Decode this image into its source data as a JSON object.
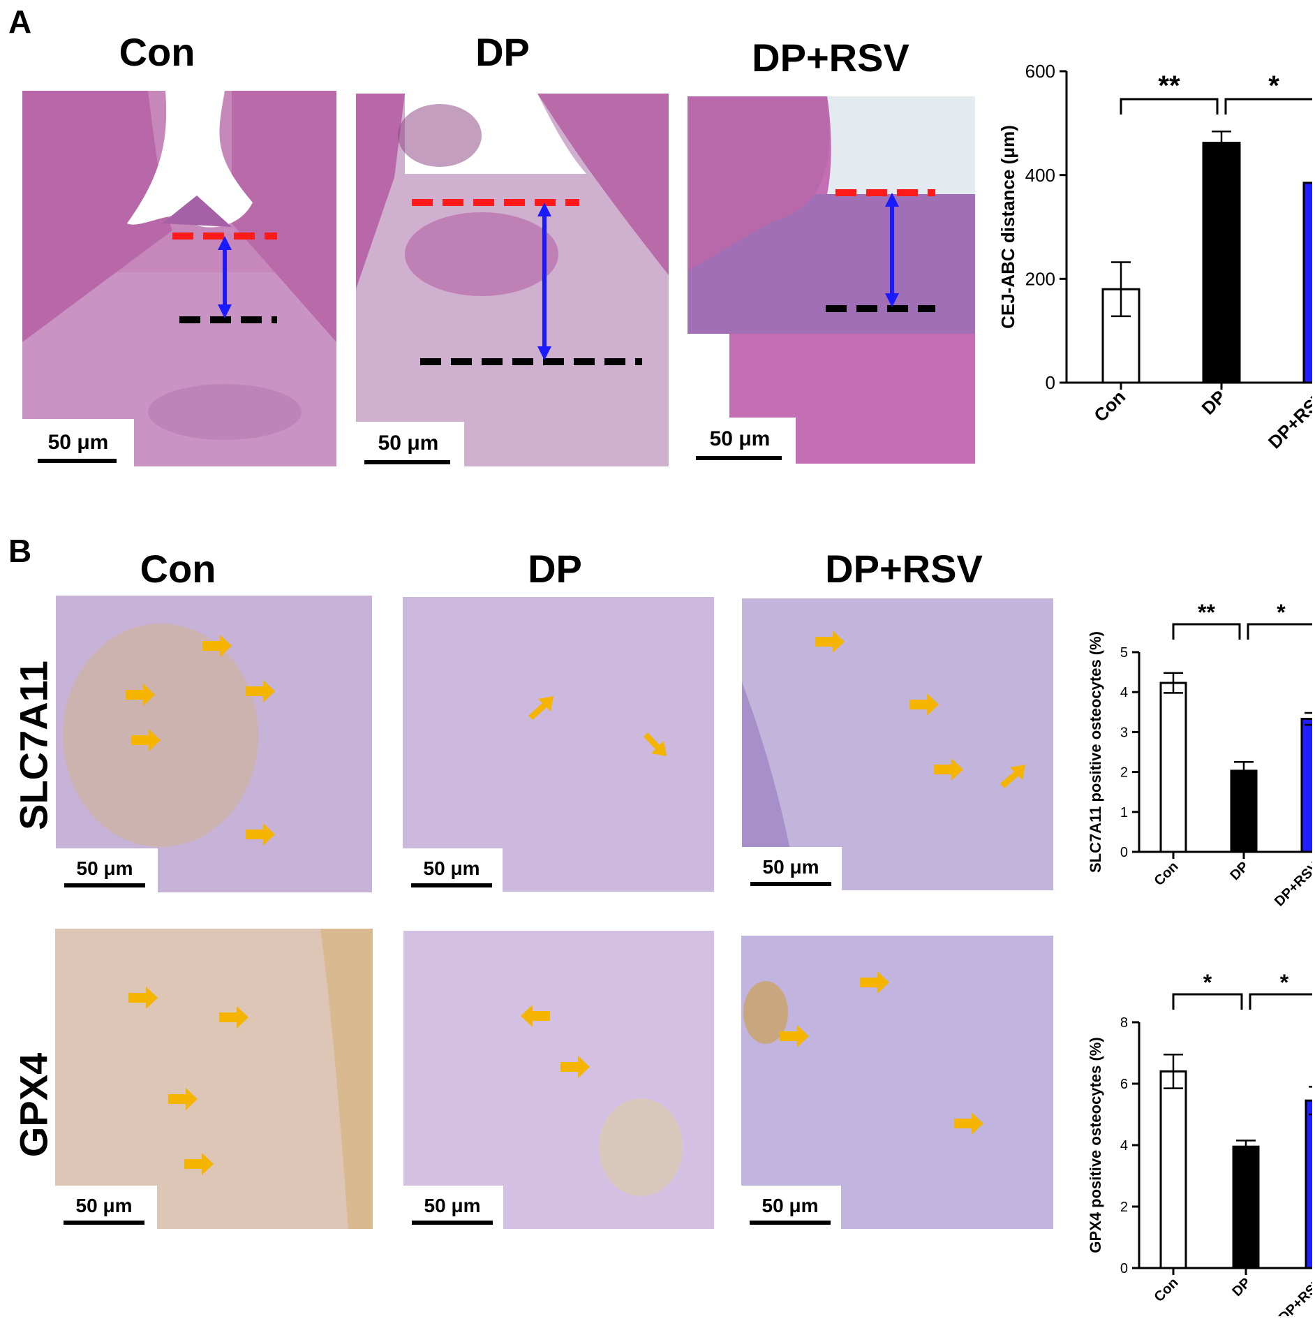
{
  "panels": {
    "a": {
      "letter": "A",
      "columns": [
        "Con",
        "DP",
        "DP+RSV"
      ],
      "scale_bar": "50 μm"
    },
    "b": {
      "letter": "B",
      "columns": [
        "Con",
        "DP",
        "DP+RSV"
      ],
      "rows": [
        "SLC7A11",
        "GPX4"
      ],
      "scale_bar": "50 μm"
    }
  },
  "colors": {
    "he_tissue": "#c98cbd",
    "he_enamel": "#b96aa9",
    "ihc_background": "#c9b8de",
    "ihc_brown": "#b8892f",
    "arrow_yellow": "#f4b400",
    "marker_red": "#ff1a1a",
    "marker_blue": "#1a1aff",
    "bar_black": "#000000",
    "bar_blue": "#1f1fff",
    "bar_white": "#ffffff"
  },
  "chart_data": [
    {
      "type": "bar",
      "categories": [
        "Con",
        "DP",
        "DP+RSV"
      ],
      "values": [
        180,
        462,
        385
      ],
      "errors": [
        52,
        22,
        15
      ],
      "bar_colors": [
        "#ffffff",
        "#000000",
        "#1f1fff"
      ],
      "ylabel": "CEJ-ABC distance (μm)",
      "ylim": [
        0,
        600
      ],
      "yticks": [
        0,
        200,
        400,
        600
      ],
      "significance": [
        {
          "from": 0,
          "to": 1,
          "label": "**"
        },
        {
          "from": 1,
          "to": 2,
          "label": "*"
        }
      ]
    },
    {
      "type": "bar",
      "categories": [
        "Con",
        "DP",
        "DP+RSV"
      ],
      "values": [
        4.23,
        2.03,
        3.33
      ],
      "errors": [
        0.25,
        0.22,
        0.15
      ],
      "bar_colors": [
        "#ffffff",
        "#000000",
        "#1f1fff"
      ],
      "ylabel": "SLC7A11 positive osteocytes (%)",
      "ylim": [
        0,
        5
      ],
      "yticks": [
        0,
        1,
        2,
        3,
        4,
        5
      ],
      "significance": [
        {
          "from": 0,
          "to": 1,
          "label": "**"
        },
        {
          "from": 1,
          "to": 2,
          "label": "*"
        }
      ]
    },
    {
      "type": "bar",
      "categories": [
        "Con",
        "DP",
        "DP+RSV"
      ],
      "values": [
        6.4,
        3.95,
        5.45
      ],
      "errors": [
        0.55,
        0.2,
        0.45
      ],
      "bar_colors": [
        "#ffffff",
        "#000000",
        "#1f1fff"
      ],
      "ylabel": "GPX4 positive osteocytes (%)",
      "ylim": [
        0,
        8
      ],
      "yticks": [
        0,
        2,
        4,
        6,
        8
      ],
      "significance": [
        {
          "from": 0,
          "to": 1,
          "label": "*"
        },
        {
          "from": 1,
          "to": 2,
          "label": "*"
        }
      ]
    }
  ]
}
